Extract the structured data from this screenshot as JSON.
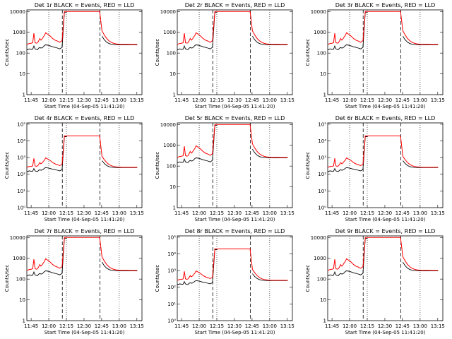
{
  "figure": {
    "x_ticks": [
      "11:45",
      "12:00",
      "12:15",
      "12:30",
      "12:45",
      "13:00",
      "13:15"
    ],
    "xlabel": "Start Time (04-Sep-05 11:41:20)",
    "ylabel": "Counts/sec",
    "colors": {
      "events": "#000000",
      "lld": "#ff0000"
    }
  },
  "chart_data": [
    {
      "type": "line",
      "title": "Det 1r  BLACK = Events, RED = LLD",
      "ytick_style": "plain",
      "yticks": [
        "1",
        "10",
        "100",
        "1000",
        "10000"
      ],
      "ylim": [
        1,
        12000
      ],
      "x_minutes": [
        0,
        2,
        4,
        5,
        6,
        7,
        8,
        9,
        10,
        11,
        12,
        13,
        14,
        15,
        16,
        18,
        20,
        22,
        24,
        26,
        28,
        30,
        32,
        34,
        36,
        38,
        40,
        42,
        44,
        46,
        48,
        50,
        52,
        54,
        56,
        58,
        60,
        62,
        64,
        66,
        68,
        70,
        72,
        74,
        76,
        78,
        80,
        82,
        84,
        86,
        88,
        90,
        92,
        94
      ],
      "series": [
        {
          "name": "Events",
          "values": [
            140,
            160,
            150,
            155,
            220,
            160,
            150,
            145,
            170,
            185,
            175,
            180,
            200,
            230,
            250,
            240,
            220,
            200,
            190,
            175,
            160,
            190,
            9000,
            null,
            null,
            null,
            null,
            null,
            null,
            null,
            null,
            null,
            null,
            null,
            null,
            null,
            null,
            null,
            null,
            null,
            null,
            null,
            null,
            null,
            null,
            null,
            null,
            null,
            null,
            null,
            null,
            null,
            null,
            null
          ]
        },
        {
          "name": "LLD",
          "values": [
            260,
            290,
            300,
            320,
            900,
            320,
            300,
            310,
            380,
            500,
            420,
            480,
            600,
            700,
            950,
            800,
            650,
            500,
            420,
            380,
            330,
            400,
            10000,
            null,
            null,
            null,
            null,
            null,
            null,
            null,
            null,
            null,
            null,
            null,
            null,
            null,
            null,
            null,
            null,
            null,
            null,
            null,
            null,
            null,
            null,
            null,
            null,
            null,
            null,
            null,
            null,
            null,
            null,
            null
          ]
        }
      ]
    },
    {
      "type": "line",
      "title": "Det 2r  BLACK = Events, RED = LLD",
      "ytick_style": "plain",
      "yticks": [
        "1",
        "10",
        "100",
        "1000",
        "10000"
      ],
      "ylim": [
        1,
        12000
      ],
      "series": [
        {
          "name": "Events",
          "values": []
        },
        {
          "name": "LLD",
          "values": []
        }
      ]
    },
    {
      "type": "line",
      "title": "Det 3r  BLACK = Events, RED = LLD",
      "ytick_style": "plain",
      "yticks": [
        "1",
        "10",
        "100",
        "1000",
        "10000"
      ],
      "ylim": [
        1,
        12000
      ],
      "series": [
        {
          "name": "Events",
          "values": []
        },
        {
          "name": "LLD",
          "values": []
        }
      ]
    },
    {
      "type": "line",
      "title": "Det 4r  BLACK = Events, RED = LLD",
      "ytick_style": "exp",
      "yticks": [
        "10⁰",
        "10¹",
        "10²",
        "10³",
        "10⁴",
        "10⁵"
      ],
      "ylim": [
        1,
        120000
      ],
      "series": [
        {
          "name": "Events",
          "values": []
        },
        {
          "name": "LLD",
          "values": []
        }
      ]
    },
    {
      "type": "line",
      "title": "Det 5r  BLACK = Events, RED = LLD",
      "ytick_style": "plain",
      "yticks": [
        "1",
        "10",
        "100",
        "1000",
        "10000"
      ],
      "ylim": [
        1,
        12000
      ],
      "series": [
        {
          "name": "Events",
          "values": []
        },
        {
          "name": "LLD",
          "values": []
        }
      ]
    },
    {
      "type": "line",
      "title": "Det 6r  BLACK = Events, RED = LLD",
      "ytick_style": "exp",
      "yticks": [
        "10⁰",
        "10¹",
        "10²",
        "10³",
        "10⁴",
        "10⁵"
      ],
      "ylim": [
        1,
        120000
      ],
      "series": [
        {
          "name": "Events",
          "values": []
        },
        {
          "name": "LLD",
          "values": []
        }
      ]
    },
    {
      "type": "line",
      "title": "Det 7r  BLACK = Events, RED = LLD",
      "ytick_style": "plain",
      "yticks": [
        "1",
        "10",
        "100",
        "1000",
        "10000"
      ],
      "ylim": [
        1,
        12000
      ],
      "series": [
        {
          "name": "Events",
          "values": []
        },
        {
          "name": "LLD",
          "values": []
        }
      ]
    },
    {
      "type": "line",
      "title": "Det 8r  BLACK = Events, RED = LLD",
      "ytick_style": "exp",
      "yticks": [
        "10⁰",
        "10¹",
        "10²",
        "10³",
        "10⁴",
        "10⁵"
      ],
      "ylim": [
        1,
        120000
      ],
      "series": [
        {
          "name": "Events",
          "values": []
        },
        {
          "name": "LLD",
          "values": []
        }
      ]
    },
    {
      "type": "line",
      "title": "Det 9r  BLACK = Events, RED = LLD",
      "ytick_style": "plain",
      "yticks": [
        "1",
        "10",
        "100",
        "1000",
        "10000"
      ],
      "ylim": [
        1,
        12000
      ],
      "series": [
        {
          "name": "Events",
          "values": []
        },
        {
          "name": "LLD",
          "values": []
        }
      ]
    }
  ]
}
